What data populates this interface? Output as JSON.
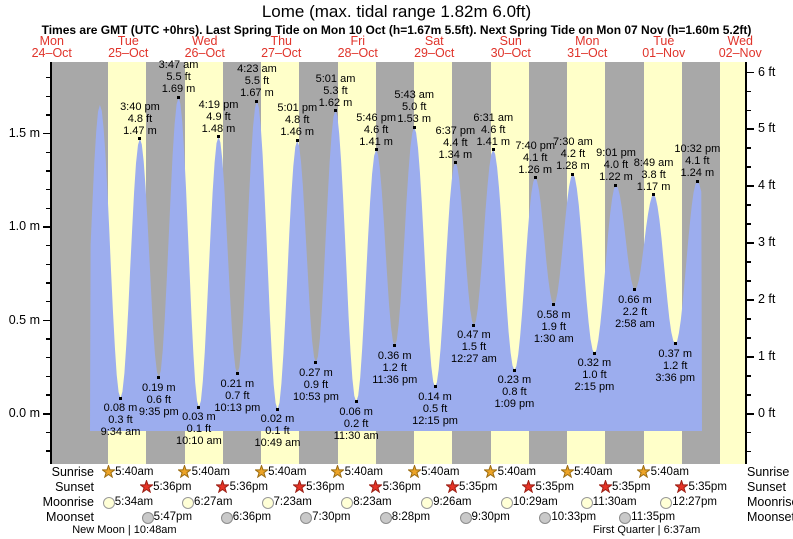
{
  "title": "Lome (max. tidal range 1.82m 6.0ft)",
  "subtitle": "Times are GMT (UTC +0hrs). Last Spring Tide on Mon 10 Oct (h=1.67m 5.5ft). Next Spring Tide on Mon 07 Nov (h=1.60m 5.2ft)",
  "colors": {
    "day_band": "#ffffc9",
    "night_band": "#a8a8a8",
    "tide_fill": "#9cadee",
    "header_red": "#e0342b",
    "sunrise_star_fill": "#eda427",
    "sunrise_star_stroke": "#9c6d12",
    "sunset_star_fill": "#e63326",
    "sunset_star_stroke": "#9c1f14",
    "moonrise_fill": "#ffffd6",
    "moonrise_stroke": "#999999",
    "moonset_fill": "#c9c9c9",
    "moonset_stroke": "#8c8c8c"
  },
  "days": [
    {
      "name": "Mon",
      "date": "24–Oct"
    },
    {
      "name": "Tue",
      "date": "25–Oct"
    },
    {
      "name": "Wed",
      "date": "26–Oct"
    },
    {
      "name": "Thu",
      "date": "27–Oct"
    },
    {
      "name": "Fri",
      "date": "28–Oct"
    },
    {
      "name": "Sat",
      "date": "29–Oct"
    },
    {
      "name": "Sun",
      "date": "30–Oct"
    },
    {
      "name": "Mon",
      "date": "31–Oct"
    },
    {
      "name": "Tue",
      "date": "01–Nov"
    },
    {
      "name": "Wed",
      "date": "02–Nov"
    }
  ],
  "axes": {
    "left_major": [
      {
        "label": "1.5 m",
        "m": 1.5
      },
      {
        "label": "1.0 m",
        "m": 1.0
      },
      {
        "label": "0.5 m",
        "m": 0.5
      },
      {
        "label": "0.0 m",
        "m": 0.0
      }
    ],
    "right_major": [
      {
        "label": "6 ft",
        "ft": 6
      },
      {
        "label": "5 ft",
        "ft": 5
      },
      {
        "label": "4 ft",
        "ft": 4
      },
      {
        "label": "3 ft",
        "ft": 3
      },
      {
        "label": "2 ft",
        "ft": 2
      },
      {
        "label": "1 ft",
        "ft": 1
      },
      {
        "label": "0 ft",
        "ft": 0
      }
    ]
  },
  "chart_data": {
    "type": "area",
    "title": "Lome (max. tidal range 1.82m 6.0ft)",
    "ylabel_left": "meters",
    "ylabel_right": "feet",
    "ylim_m": [
      -0.28,
      1.88
    ],
    "day_zero": "Tue 25–Oct",
    "events": [
      {
        "d": 0,
        "time": null,
        "t_est": 3.1,
        "height_m": 1.65,
        "kind": "high",
        "label": null
      },
      {
        "d": 0,
        "time": "9:34 am",
        "height_m": 0.08,
        "kind": "low",
        "label": [
          "0.08 m",
          "0.3 ft",
          "9:34 am"
        ]
      },
      {
        "d": 0,
        "time": "3:40 pm",
        "height_m": 1.47,
        "kind": "high",
        "label": [
          "3:40 pm",
          "4.8 ft",
          "1.47 m"
        ]
      },
      {
        "d": 0,
        "time": "9:35 pm",
        "height_m": 0.19,
        "kind": "low",
        "label": [
          "0.19 m",
          "0.6 ft",
          "9:35 pm"
        ]
      },
      {
        "d": 1,
        "time": "3:47 am",
        "height_m": 1.69,
        "kind": "high",
        "label": [
          "3:47 am",
          "5.5 ft",
          "1.69 m"
        ]
      },
      {
        "d": 1,
        "time": "10:10 am",
        "height_m": 0.03,
        "kind": "low",
        "label": [
          "0.03 m",
          "0.1 ft",
          "10:10 am"
        ]
      },
      {
        "d": 1,
        "time": "4:19 pm",
        "height_m": 1.48,
        "kind": "high",
        "label": [
          "4:19 pm",
          "4.9 ft",
          "1.48 m"
        ]
      },
      {
        "d": 1,
        "time": "10:13 pm",
        "height_m": 0.21,
        "kind": "low",
        "label": [
          "0.21 m",
          "0.7 ft",
          "10:13 pm"
        ]
      },
      {
        "d": 2,
        "time": "4:23 am",
        "height_m": 1.67,
        "kind": "high",
        "label": [
          "4:23 am",
          "5.5 ft",
          "1.67 m"
        ]
      },
      {
        "d": 2,
        "time": "10:49 am",
        "height_m": 0.02,
        "kind": "low",
        "label": [
          "0.02 m",
          "0.1 ft",
          "10:49 am"
        ]
      },
      {
        "d": 2,
        "time": "5:01 pm",
        "height_m": 1.46,
        "kind": "high",
        "label": [
          "5:01 pm",
          "4.8 ft",
          "1.46 m"
        ]
      },
      {
        "d": 2,
        "time": "10:53 pm",
        "height_m": 0.27,
        "kind": "low",
        "label": [
          "0.27 m",
          "0.9 ft",
          "10:53 pm"
        ]
      },
      {
        "d": 3,
        "time": "5:01 am",
        "height_m": 1.62,
        "kind": "high",
        "label": [
          "5:01 am",
          "5.3 ft",
          "1.62 m"
        ]
      },
      {
        "d": 3,
        "time": "11:30 am",
        "height_m": 0.06,
        "kind": "low",
        "label": [
          "0.06 m",
          "0.2 ft",
          "11:30 am"
        ]
      },
      {
        "d": 3,
        "time": "5:46 pm",
        "height_m": 1.41,
        "kind": "high",
        "label": [
          "5:46 pm",
          "4.6 ft",
          "1.41 m"
        ]
      },
      {
        "d": 3,
        "time": "11:36 pm",
        "height_m": 0.36,
        "kind": "low",
        "label": [
          "0.36 m",
          "1.2 ft",
          "11:36 pm"
        ]
      },
      {
        "d": 4,
        "time": "5:43 am",
        "height_m": 1.53,
        "kind": "high",
        "label": [
          "5:43 am",
          "5.0 ft",
          "1.53 m"
        ]
      },
      {
        "d": 4,
        "time": "12:15 pm",
        "height_m": 0.14,
        "kind": "low",
        "label": [
          "0.14 m",
          "0.5 ft",
          "12:15 pm"
        ]
      },
      {
        "d": 4,
        "time": "6:37 pm",
        "height_m": 1.34,
        "kind": "high",
        "label": [
          "6:37 pm",
          "4.4 ft",
          "1.34 m"
        ]
      },
      {
        "d": 5,
        "time": "12:27 am",
        "height_m": 0.47,
        "kind": "low",
        "label": [
          "0.47 m",
          "1.5 ft",
          "12:27 am"
        ]
      },
      {
        "d": 5,
        "time": "6:31 am",
        "height_m": 1.41,
        "kind": "high",
        "label": [
          "6:31 am",
          "4.6 ft",
          "1.41 m"
        ]
      },
      {
        "d": 5,
        "time": "1:09 pm",
        "height_m": 0.23,
        "kind": "low",
        "label": [
          "0.23 m",
          "0.8 ft",
          "1:09 pm"
        ]
      },
      {
        "d": 5,
        "time": "7:40 pm",
        "height_m": 1.26,
        "kind": "high",
        "label": [
          "7:40 pm",
          "4.1 ft",
          "1.26 m"
        ]
      },
      {
        "d": 6,
        "time": "1:30 am",
        "height_m": 0.58,
        "kind": "low",
        "label": [
          "0.58 m",
          "1.9 ft",
          "1:30 am"
        ]
      },
      {
        "d": 6,
        "time": "7:30 am",
        "height_m": 1.28,
        "kind": "high",
        "label": [
          "7:30 am",
          "4.2 ft",
          "1.28 m"
        ]
      },
      {
        "d": 6,
        "time": "2:15 pm",
        "height_m": 0.32,
        "kind": "low",
        "label": [
          "0.32 m",
          "1.0 ft",
          "2:15 pm"
        ]
      },
      {
        "d": 6,
        "time": "9:01 pm",
        "height_m": 1.22,
        "kind": "high",
        "label": [
          "9:01 pm",
          "4.0 ft",
          "1.22 m"
        ]
      },
      {
        "d": 7,
        "time": "2:58 am",
        "height_m": 0.66,
        "kind": "low",
        "label": [
          "0.66 m",
          "2.2 ft",
          "2:58 am"
        ]
      },
      {
        "d": 7,
        "time": "8:49 am",
        "height_m": 1.17,
        "kind": "high",
        "label": [
          "8:49 am",
          "3.8 ft",
          "1.17 m"
        ]
      },
      {
        "d": 7,
        "time": "3:36 pm",
        "height_m": 0.37,
        "kind": "low",
        "label": [
          "0.37 m",
          "1.2 ft",
          "3:36 pm"
        ]
      },
      {
        "d": 7,
        "time": "10:32 pm",
        "height_m": 1.24,
        "kind": "high",
        "label": [
          "10:32 pm",
          "4.1 ft",
          "1.24 m"
        ]
      }
    ]
  },
  "sun_moon": {
    "rows": [
      {
        "name": "sunrise",
        "label": "Sunrise",
        "icon": "sunrise-star",
        "entries": [
          {
            "d": 0,
            "time": "5:40am"
          },
          {
            "d": 1,
            "time": "5:40am"
          },
          {
            "d": 2,
            "time": "5:40am"
          },
          {
            "d": 3,
            "time": "5:40am"
          },
          {
            "d": 4,
            "time": "5:40am"
          },
          {
            "d": 5,
            "time": "5:40am"
          },
          {
            "d": 6,
            "time": "5:40am"
          },
          {
            "d": 7,
            "time": "5:40am"
          }
        ]
      },
      {
        "name": "sunset",
        "label": "Sunset",
        "icon": "sunset-star",
        "entries": [
          {
            "d": 0,
            "time": "5:36pm"
          },
          {
            "d": 1,
            "time": "5:36pm"
          },
          {
            "d": 2,
            "time": "5:36pm"
          },
          {
            "d": 3,
            "time": "5:36pm"
          },
          {
            "d": 4,
            "time": "5:35pm"
          },
          {
            "d": 5,
            "time": "5:35pm"
          },
          {
            "d": 6,
            "time": "5:35pm"
          },
          {
            "d": 7,
            "time": "5:35pm"
          }
        ]
      },
      {
        "name": "moonrise",
        "label": "Moonrise",
        "icon": "moonrise-circle",
        "entries": [
          {
            "d": 0,
            "time": "5:34am"
          },
          {
            "d": 1,
            "time": "6:27am"
          },
          {
            "d": 2,
            "time": "7:23am"
          },
          {
            "d": 3,
            "time": "8:23am"
          },
          {
            "d": 4,
            "time": "9:26am"
          },
          {
            "d": 5,
            "time": "10:29am"
          },
          {
            "d": 6,
            "time": "11:30am"
          },
          {
            "d": 7,
            "time": "12:27pm"
          }
        ]
      },
      {
        "name": "moonset",
        "label": "Moonset",
        "icon": "moonset-circle",
        "entries": [
          {
            "d": 0,
            "time": "5:47pm"
          },
          {
            "d": 1,
            "time": "6:36pm"
          },
          {
            "d": 2,
            "time": "7:30pm"
          },
          {
            "d": 3,
            "time": "8:28pm"
          },
          {
            "d": 4,
            "time": "9:30pm"
          },
          {
            "d": 5,
            "time": "10:33pm"
          },
          {
            "d": 6,
            "time": "11:35pm"
          }
        ]
      }
    ],
    "notes": [
      {
        "text": "New Moon | 10:48am",
        "d": 0,
        "time": "10:48am"
      },
      {
        "text": "First Quarter | 6:37am",
        "d": 7,
        "time": "6:37am"
      }
    ]
  }
}
